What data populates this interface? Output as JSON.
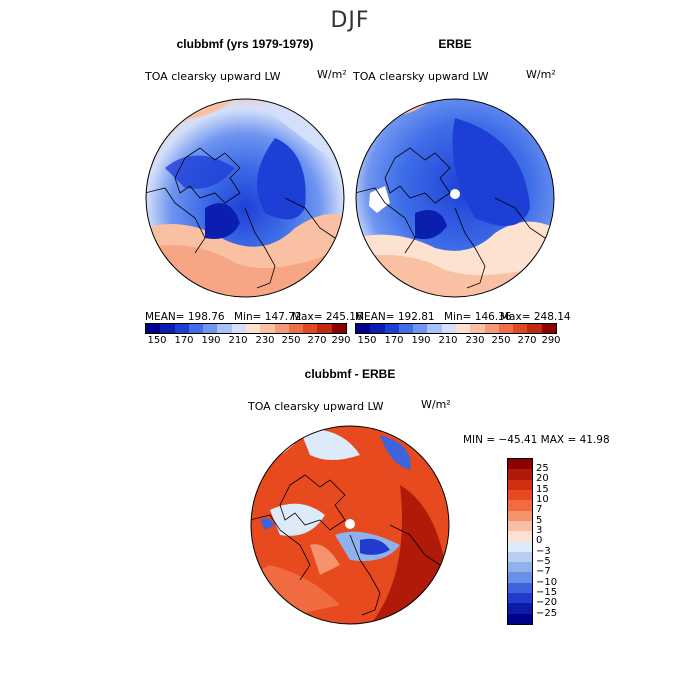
{
  "page_title": "DJF",
  "colors": {
    "abs_scale": [
      "#00008b",
      "#0a1fb0",
      "#1e3fd6",
      "#3f6ee8",
      "#6f95f0",
      "#a7c0f5",
      "#d4e0fa",
      "#fde2d2",
      "#f9c0a4",
      "#f59a78",
      "#ee7048",
      "#e04a23",
      "#c02a10",
      "#8b0000"
    ],
    "diff_scale": [
      "#8b0000",
      "#b01a08",
      "#d02f10",
      "#e64a1e",
      "#f06b3f",
      "#f5936c",
      "#f9bea3",
      "#fbe1d2",
      "#ddeaf9",
      "#b6cef2",
      "#8fb1ec",
      "#6a8fe6",
      "#3f63dc",
      "#1f3ccc",
      "#0c1ba8",
      "#00008b"
    ]
  },
  "chart_data": [
    {
      "type": "heatmap",
      "panel": "model",
      "title": "clubbmf (yrs 1979-1979)",
      "variable": "TOA clearsky upward LW",
      "units": "W/m²",
      "mean": "MEAN= 198.76",
      "min": "Min= 147.72",
      "max": "Max= 245.16",
      "colorbar_ticks": [
        "150",
        "170",
        "190",
        "210",
        "230",
        "250",
        "270",
        "290"
      ]
    },
    {
      "type": "heatmap",
      "panel": "observations",
      "title": "ERBE",
      "variable": "TOA clearsky upward LW",
      "units": "W/m²",
      "mean": "MEAN= 192.81",
      "min": "Min= 146.36",
      "max": "Max= 248.14",
      "colorbar_ticks": [
        "150",
        "170",
        "190",
        "210",
        "230",
        "250",
        "270",
        "290"
      ]
    },
    {
      "type": "heatmap",
      "panel": "difference",
      "title": "clubbmf - ERBE",
      "variable": "TOA clearsky upward LW",
      "units": "W/m²",
      "minmax": "MIN = −45.41 MAX =  41.98",
      "colorbar_ticks": [
        "25",
        "20",
        "15",
        "10",
        "7",
        "5",
        "3",
        "0",
        "−3",
        "−5",
        "−7",
        "−10",
        "−15",
        "−20",
        "−25"
      ]
    }
  ]
}
